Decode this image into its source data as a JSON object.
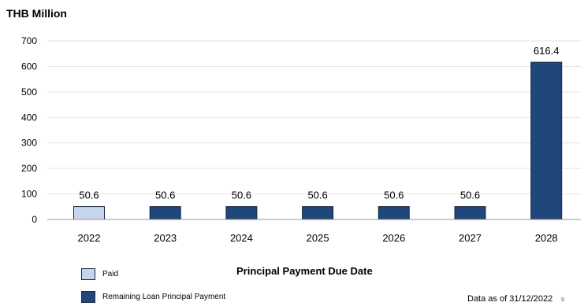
{
  "unit_label": "THB Million",
  "footnote": "Data as of 31/12/2022",
  "page_number": "9",
  "colors": {
    "paid": "#c6d5ee",
    "remaining": "#1f477a",
    "bar_border": "#1a2a44",
    "grid": "#e3e3e3",
    "axis": "#9a9a9a"
  },
  "chart_data": {
    "type": "bar",
    "title": "",
    "xlabel": "Principal Payment Due Date",
    "ylabel": "THB Million",
    "categories": [
      "2022",
      "2023",
      "2024",
      "2025",
      "2026",
      "2027",
      "2028"
    ],
    "values": [
      50.6,
      50.6,
      50.6,
      50.6,
      50.6,
      50.6,
      616.4
    ],
    "data_labels": [
      "50.6",
      "50.6",
      "50.6",
      "50.6",
      "50.6",
      "50.6",
      "616.4"
    ],
    "bar_status": [
      "paid",
      "remaining",
      "remaining",
      "remaining",
      "remaining",
      "remaining",
      "remaining"
    ],
    "ylim": [
      0,
      700
    ],
    "yticks": [
      0,
      100,
      200,
      300,
      400,
      500,
      600,
      700
    ],
    "grid": true,
    "legend_placement": "bottom-left",
    "legend": [
      {
        "key": "paid",
        "label": "Paid"
      },
      {
        "key": "remaining",
        "label": "Remaining Loan Principal Payment"
      }
    ]
  }
}
